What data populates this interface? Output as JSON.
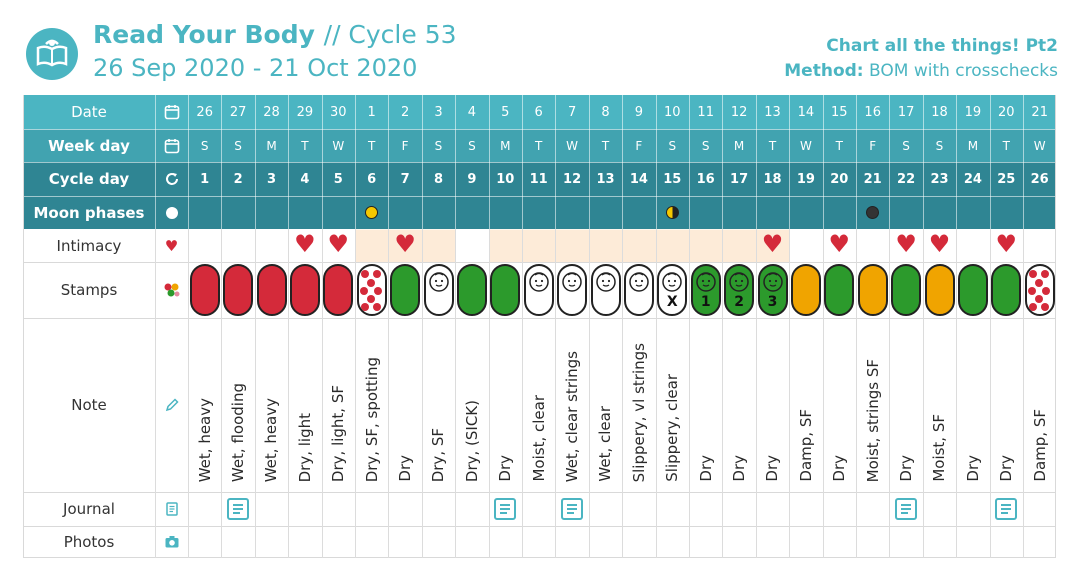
{
  "header": {
    "app_title": "Read Your Body",
    "cycle_label": "// Cycle 53",
    "date_range": "26 Sep 2020 - 21 Oct 2020",
    "subtitle": "Chart all the things! Pt2",
    "method_label": "Method:",
    "method_value": "BOM with crosschecks"
  },
  "colors": {
    "teal_light": "#4bb5c2",
    "teal_mid": "#41a3b0",
    "teal_dark": "#2f8593",
    "red": "#d42a3a",
    "green": "#2c9a2c",
    "yellow": "#f0a400",
    "peach": "#fdebd8"
  },
  "rows": {
    "date": {
      "label": "Date",
      "icon": "calendar-icon"
    },
    "weekday": {
      "label": "Week day",
      "icon": "calendar-icon"
    },
    "cycleday": {
      "label": "Cycle day",
      "icon": "refresh-icon"
    },
    "moon": {
      "label": "Moon phases",
      "icon": "moon-icon"
    },
    "intimacy": {
      "label": "Intimacy",
      "icon": "heart-icon"
    },
    "stamps": {
      "label": "Stamps",
      "icon": "stamps-icon"
    },
    "note": {
      "label": "Note",
      "icon": "pencil-icon"
    },
    "journal": {
      "label": "Journal",
      "icon": "journal-icon"
    },
    "photos": {
      "label": "Photos",
      "icon": "camera-icon"
    }
  },
  "days": [
    {
      "date": "26",
      "wd": "S",
      "cd": "1",
      "stamp": "red",
      "note": "Wet, heavy"
    },
    {
      "date": "27",
      "wd": "S",
      "cd": "2",
      "stamp": "red",
      "note": "Wet, flooding",
      "journal": true
    },
    {
      "date": "28",
      "wd": "M",
      "cd": "3",
      "stamp": "red",
      "note": "Wet, heavy"
    },
    {
      "date": "29",
      "wd": "T",
      "cd": "4",
      "stamp": "red",
      "note": "Dry, light",
      "heart": true
    },
    {
      "date": "30",
      "wd": "W",
      "cd": "5",
      "stamp": "red",
      "note": "Dry, light, SF",
      "heart": true
    },
    {
      "date": "1",
      "wd": "T",
      "cd": "6",
      "stamp": "dots",
      "note": "Dry, SF, spotting",
      "moon": "full",
      "peach": true
    },
    {
      "date": "2",
      "wd": "F",
      "cd": "7",
      "stamp": "green",
      "note": "Dry",
      "heart": true,
      "peach": true
    },
    {
      "date": "3",
      "wd": "S",
      "cd": "8",
      "stamp": "baby",
      "note": "Dry, SF",
      "peach": true
    },
    {
      "date": "4",
      "wd": "S",
      "cd": "9",
      "stamp": "green",
      "note": "Dry, (SICK)"
    },
    {
      "date": "5",
      "wd": "M",
      "cd": "10",
      "stamp": "green",
      "note": "Dry",
      "peach": true,
      "journal": true
    },
    {
      "date": "6",
      "wd": "T",
      "cd": "11",
      "stamp": "baby",
      "note": "Moist, clear",
      "peach": true
    },
    {
      "date": "7",
      "wd": "W",
      "cd": "12",
      "stamp": "baby",
      "note": "Wet, clear strings",
      "peach": true,
      "journal": true
    },
    {
      "date": "8",
      "wd": "T",
      "cd": "13",
      "stamp": "baby",
      "note": "Wet, clear",
      "peach": true
    },
    {
      "date": "9",
      "wd": "F",
      "cd": "14",
      "stamp": "baby",
      "note": "Slippery, vl strings",
      "peach": true
    },
    {
      "date": "10",
      "wd": "S",
      "cd": "15",
      "stamp": "baby",
      "stamp_mark": "X",
      "note": "Slippery, clear",
      "moon": "quarter",
      "peach": true
    },
    {
      "date": "11",
      "wd": "S",
      "cd": "16",
      "stamp": "greenbaby",
      "stamp_mark": "1",
      "note": "Dry",
      "peach": true
    },
    {
      "date": "12",
      "wd": "M",
      "cd": "17",
      "stamp": "greenbaby",
      "stamp_mark": "2",
      "note": "Dry",
      "peach": true
    },
    {
      "date": "13",
      "wd": "T",
      "cd": "18",
      "stamp": "greenbaby",
      "stamp_mark": "3",
      "note": "Dry",
      "heart": true,
      "peach": true
    },
    {
      "date": "14",
      "wd": "W",
      "cd": "19",
      "stamp": "yellow",
      "note": "Damp, SF"
    },
    {
      "date": "15",
      "wd": "T",
      "cd": "20",
      "stamp": "green",
      "note": "Dry",
      "heart": true
    },
    {
      "date": "16",
      "wd": "F",
      "cd": "21",
      "stamp": "yellow",
      "note": "Moist, strings SF",
      "moon": "new"
    },
    {
      "date": "17",
      "wd": "S",
      "cd": "22",
      "stamp": "green",
      "note": "Dry",
      "heart": true,
      "journal": true
    },
    {
      "date": "18",
      "wd": "S",
      "cd": "23",
      "stamp": "yellow",
      "note": "Moist, SF",
      "heart": true
    },
    {
      "date": "19",
      "wd": "M",
      "cd": "24",
      "stamp": "green",
      "note": "Dry"
    },
    {
      "date": "20",
      "wd": "T",
      "cd": "25",
      "stamp": "green",
      "note": "Dry",
      "heart": true,
      "journal": true
    },
    {
      "date": "21",
      "wd": "W",
      "cd": "26",
      "stamp": "dots",
      "note": "Damp, SF"
    }
  ]
}
